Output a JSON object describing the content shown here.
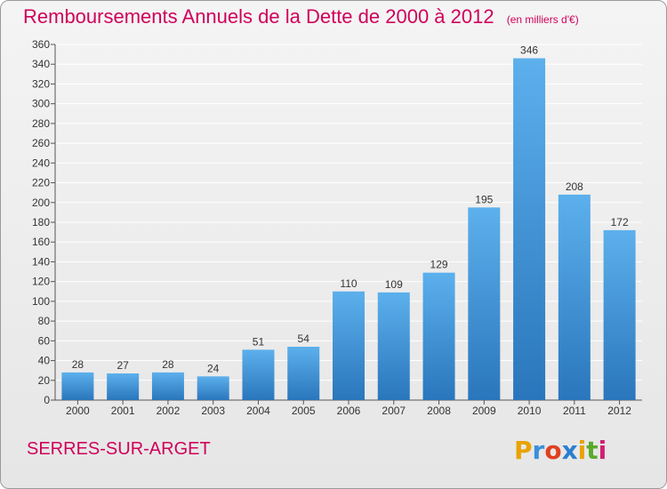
{
  "header": {
    "title": "Remboursements Annuels de la Dette de 2000 à 2012",
    "unit": "(en milliers d'€)"
  },
  "commune": "SERRES-SUR-ARGET",
  "logo": {
    "letters": [
      "P",
      "r",
      "o",
      "x",
      "i",
      "t",
      "i"
    ],
    "colors": [
      "#e8a300",
      "#3a8fd8",
      "#e04020",
      "#2a7fd0",
      "#e8a300",
      "#5aaa2a",
      "#d02070"
    ]
  },
  "colors": {
    "bar": "#4a9ee0",
    "bar_dark": "#2a72b8",
    "title": "#d0005a",
    "grid": "#ffffff"
  },
  "chart_data": {
    "type": "bar",
    "title": "Remboursements Annuels de la Dette de 2000 à 2012",
    "subtitle": "(en milliers d'€)",
    "categories": [
      "2000",
      "2001",
      "2002",
      "2003",
      "2004",
      "2005",
      "2006",
      "2007",
      "2008",
      "2009",
      "2010",
      "2011",
      "2012"
    ],
    "values": [
      28,
      27,
      28,
      24,
      51,
      54,
      110,
      109,
      129,
      195,
      346,
      208,
      172
    ],
    "ylim": [
      0,
      360
    ],
    "yticks": [
      0,
      20,
      40,
      60,
      80,
      100,
      120,
      140,
      160,
      180,
      200,
      220,
      240,
      260,
      280,
      300,
      320,
      340,
      360
    ],
    "grid": true,
    "data_labels": true
  }
}
